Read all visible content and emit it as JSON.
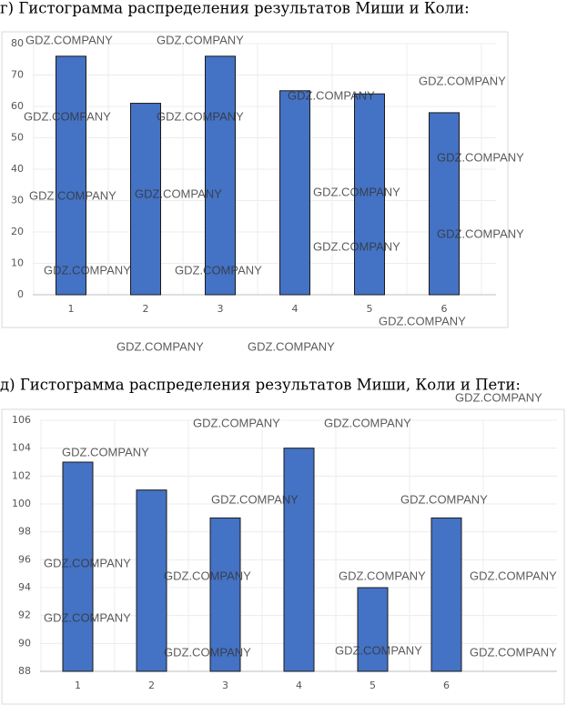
{
  "chart_data": [
    {
      "type": "bar",
      "title": "г) Гистограмма распределения результатов Миши и Коли:",
      "categories": [
        "1",
        "2",
        "3",
        "4",
        "5",
        "6"
      ],
      "values": [
        76,
        61,
        76,
        65,
        64,
        58
      ],
      "color": "#4472c4",
      "ylim": [
        0,
        80
      ],
      "yticks": [
        0,
        10,
        20,
        30,
        40,
        50,
        60,
        70,
        80
      ],
      "grid": true
    },
    {
      "type": "bar",
      "title": "д) Гистограмма распределения результатов Миши, Коли и Пети:",
      "categories": [
        "1",
        "2",
        "3",
        "4",
        "5",
        "6"
      ],
      "values": [
        103,
        101,
        99,
        104,
        94,
        99
      ],
      "color": "#4472c4",
      "ylim": [
        88,
        106
      ],
      "yticks": [
        88,
        90,
        92,
        94,
        96,
        98,
        100,
        102,
        104,
        106
      ],
      "grid": true
    }
  ],
  "watermark": "GDZ.COMPANY"
}
